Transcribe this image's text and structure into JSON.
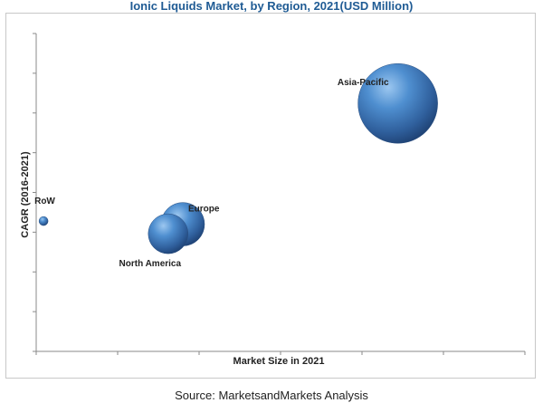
{
  "page": {
    "source": "Source: MarketsandMarkets Analysis"
  },
  "chart_data": {
    "type": "scatter",
    "title": "Ionic Liquids Market, by Region, 2021(USD Million)",
    "xlabel": "Market Size in 2021",
    "ylabel": "CAGR (2016-2021)",
    "xlim": [
      0,
      100
    ],
    "ylim": [
      0,
      100
    ],
    "grid": false,
    "bubble_color": "#3f78b8",
    "points": [
      {
        "label": "Asia-Pacific",
        "x": 74,
        "y": 78,
        "size": 44
      },
      {
        "label": "Europe",
        "x": 30,
        "y": 40,
        "size": 24
      },
      {
        "label": "North America",
        "x": 27,
        "y": 37,
        "size": 22
      },
      {
        "label": "RoW",
        "x": 1.5,
        "y": 41,
        "size": 5
      }
    ]
  }
}
